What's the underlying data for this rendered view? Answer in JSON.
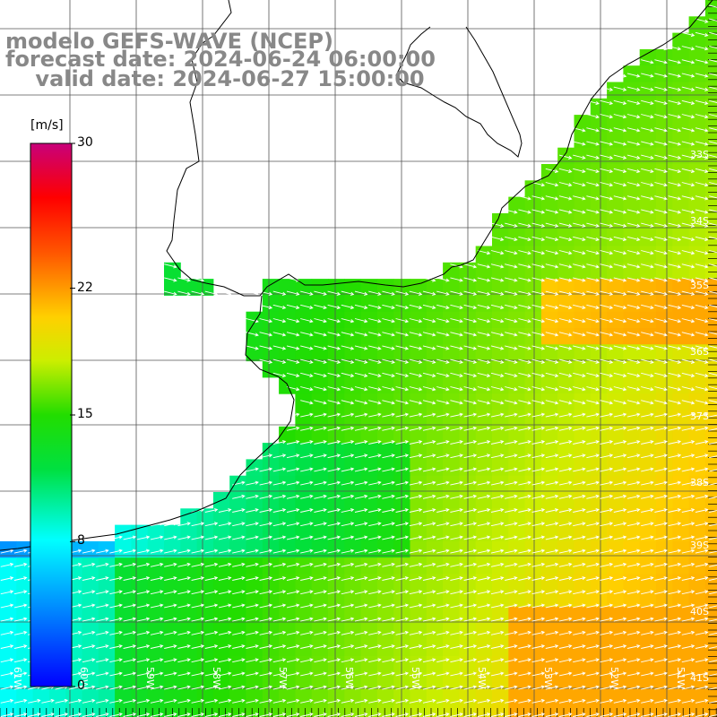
{
  "title": {
    "line1": "modelo GEFS-WAVE (NCEP)",
    "line2": "forecast date: 2024-06-24 06:00:00",
    "line3": "    valid date: 2024-06-27 15:00:00"
  },
  "colorbar": {
    "unit": "[m/s]",
    "ticks": [
      {
        "label": "30",
        "value": 30
      },
      {
        "label": "22",
        "value": 22
      },
      {
        "label": "15",
        "value": 15
      },
      {
        "label": "8",
        "value": 8
      },
      {
        "label": "0",
        "value": 0
      }
    ],
    "range": [
      0,
      30
    ],
    "colors": [
      "#1a1aff",
      "#00aaff",
      "#00ffee",
      "#00ee00",
      "#d4ff00",
      "#ffd000",
      "#ff6600",
      "#ff0000",
      "#c8007a"
    ]
  },
  "axes": {
    "lat_labels": [
      "33S",
      "34S",
      "35S",
      "36S",
      "37S",
      "38S",
      "39S",
      "40S",
      "41S"
    ],
    "lon_labels": [
      "61W",
      "60W",
      "59W",
      "58W",
      "57W",
      "56W",
      "55W",
      "54W",
      "53W",
      "52W",
      "51W"
    ]
  },
  "legend": {
    "cbar_label_color": "#000000",
    "title_color": "#888888"
  }
}
